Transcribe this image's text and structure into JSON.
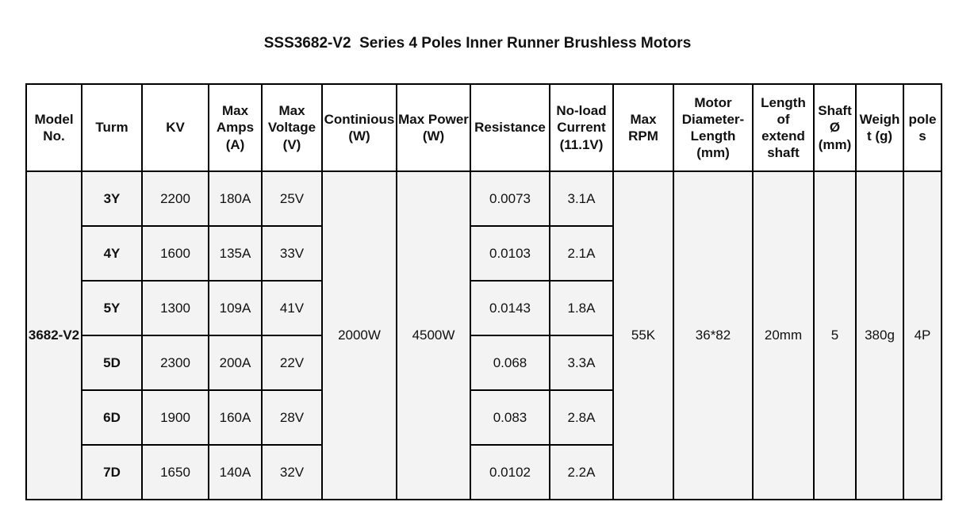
{
  "title": "SSS3682-V2  Series 4 Poles Inner Runner Brushless Motors",
  "headers": {
    "model": "Model\nNo.",
    "turn": "Turm",
    "kv": "KV",
    "max_amps": "Max\nAmps\n(A)",
    "max_voltage": "Max\nVoltage\n(V)",
    "continuous": "Continious\n(W)",
    "max_power": "Max Power\n(W)",
    "resistance": "Resistance",
    "noload": "No-load\nCurrent\n(11.1V)",
    "max_rpm": "Max\nRPM",
    "diameter": "Motor\nDiameter-\nLength\n(mm)",
    "length": "Length\nof\nextend\nshaft",
    "shaft": "Shaft\nØ\n(mm)",
    "weight": "Weigh\nt (g)",
    "poles": "pole\ns"
  },
  "shared": {
    "model": "3682-V2",
    "continuous": "2000W",
    "max_power": "4500W",
    "max_rpm": "55K",
    "diameter": "36*82",
    "length": "20mm",
    "shaft": "5",
    "weight": "380g",
    "poles": "4P"
  },
  "rows": [
    {
      "turn": "3Y",
      "kv": "2200",
      "max_amps": "180A",
      "max_voltage": "25V",
      "resistance": "0.0073",
      "noload": "3.1A"
    },
    {
      "turn": "4Y",
      "kv": "1600",
      "max_amps": "135A",
      "max_voltage": "33V",
      "resistance": "0.0103",
      "noload": "2.1A"
    },
    {
      "turn": "5Y",
      "kv": "1300",
      "max_amps": "109A",
      "max_voltage": "41V",
      "resistance": "0.0143",
      "noload": "1.8A"
    },
    {
      "turn": "5D",
      "kv": "2300",
      "max_amps": "200A",
      "max_voltage": "22V",
      "resistance": "0.068",
      "noload": "3.3A"
    },
    {
      "turn": "6D",
      "kv": "1900",
      "max_amps": "160A",
      "max_voltage": "28V",
      "resistance": "0.083",
      "noload": "2.8A"
    },
    {
      "turn": "7D",
      "kv": "1650",
      "max_amps": "140A",
      "max_voltage": "32V",
      "resistance": "0.0102",
      "noload": "2.2A"
    }
  ]
}
